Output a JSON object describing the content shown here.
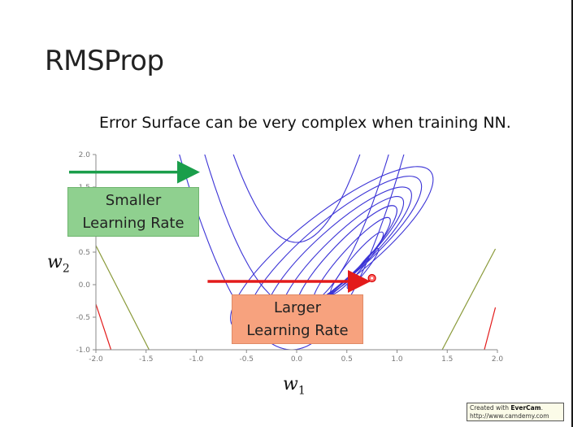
{
  "slide": {
    "title": "RMSProp",
    "subtitle": "Error Surface can be very complex when training NN."
  },
  "annotations": {
    "smaller_line1": "Smaller",
    "smaller_line2": "Learning Rate",
    "larger_line1": "Larger",
    "larger_line2": "Learning Rate"
  },
  "axes": {
    "x_var": "w",
    "x_sub": "1",
    "y_var": "w",
    "y_sub": "2"
  },
  "badge": {
    "prefix": "Created with ",
    "brand": "EverCam",
    "suffix": ".",
    "url": "http://www.camdemy.com"
  },
  "chart_data": {
    "type": "contour",
    "title": "",
    "xlabel": "w1",
    "ylabel": "w2",
    "xlim": [
      -2.0,
      2.0
    ],
    "ylim": [
      -1.0,
      2.0
    ],
    "x_ticks": [
      "-2.0",
      "-1.5",
      "-1.0",
      "-0.5",
      "0.0",
      "0.5",
      "1.0",
      "1.5",
      "2.0"
    ],
    "y_ticks": [
      "-1.0",
      "-0.5",
      "0.0",
      "0.5",
      "1.0",
      "1.5",
      "2.0"
    ],
    "minimum_marker": [
      0.75,
      0.1
    ],
    "arrows": [
      {
        "color": "#1a9e4b",
        "from": [
          -2.0,
          1.73
        ],
        "to": [
          -1.02,
          1.73
        ]
      },
      {
        "color": "#e31b1b",
        "from": [
          -0.62,
          0.05
        ],
        "to": [
          0.68,
          0.05
        ]
      }
    ],
    "colors": {
      "contour": "#3b33d6",
      "outer_olive": "#8a9a3a",
      "outer_red": "#e31b1b",
      "axis": "#888888"
    }
  }
}
